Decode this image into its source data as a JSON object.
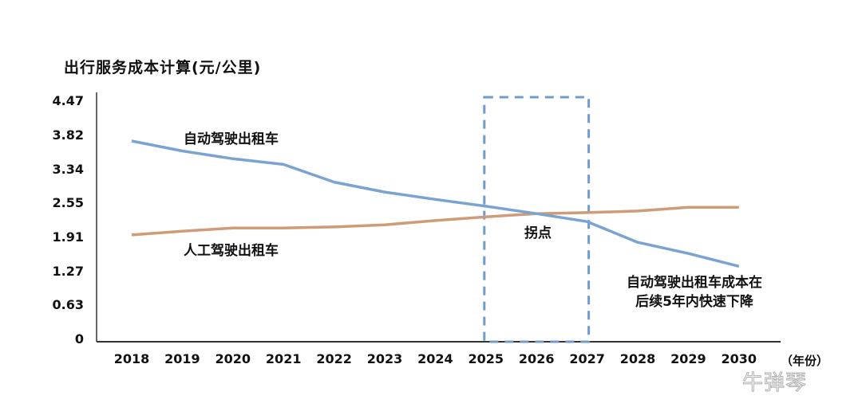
{
  "title": "出行服务成本计算(元/公里)",
  "x_unit": "（年份）",
  "watermark": "牛弹琴",
  "annotations": {
    "autonomous_label": "自动驾驶出租车",
    "manual_label": "人工驾驶出租车",
    "inflection_label": "拐点",
    "note_line1": "自动驾驶出租车成本在",
    "note_line2": "后续5年内快速下降"
  },
  "colors": {
    "autonomous": "#7aa3d2",
    "manual": "#cf9b78",
    "box": "#6f9ccd",
    "axis": "#333333"
  },
  "chart_data": {
    "type": "line",
    "title": "出行服务成本计算(元/公里)",
    "xlabel": "（年份）",
    "ylabel": "元/公里",
    "categories": [
      "2018",
      "2019",
      "2020",
      "2021",
      "2022",
      "2023",
      "2024",
      "2025",
      "2026",
      "2027",
      "2028",
      "2029",
      "2030"
    ],
    "y_ticks": [
      "0",
      "0.63",
      "1.27",
      "1.91",
      "2.55",
      "3.34",
      "3.82",
      "4.47"
    ],
    "ylim": [
      0,
      4.47
    ],
    "grid": false,
    "legend": "inline labels",
    "series": [
      {
        "name": "自动驾驶出租车",
        "values": [
          3.75,
          3.61,
          3.5,
          3.42,
          3.06,
          2.83,
          2.66,
          2.51,
          2.37,
          2.22,
          1.83,
          1.62,
          1.38
        ]
      },
      {
        "name": "人工驾驶出租车",
        "values": [
          1.97,
          2.04,
          2.1,
          2.1,
          2.12,
          2.16,
          2.24,
          2.31,
          2.37,
          2.39,
          2.42,
          2.49,
          2.49
        ]
      }
    ],
    "highlight_region": {
      "from": "2025",
      "to": "2027",
      "style": "dashed box",
      "label": "拐点"
    },
    "annotations": [
      "自动驾驶出租车",
      "人工驾驶出租车",
      "拐点",
      "自动驾驶出租车成本在后续5年内快速下降"
    ]
  }
}
